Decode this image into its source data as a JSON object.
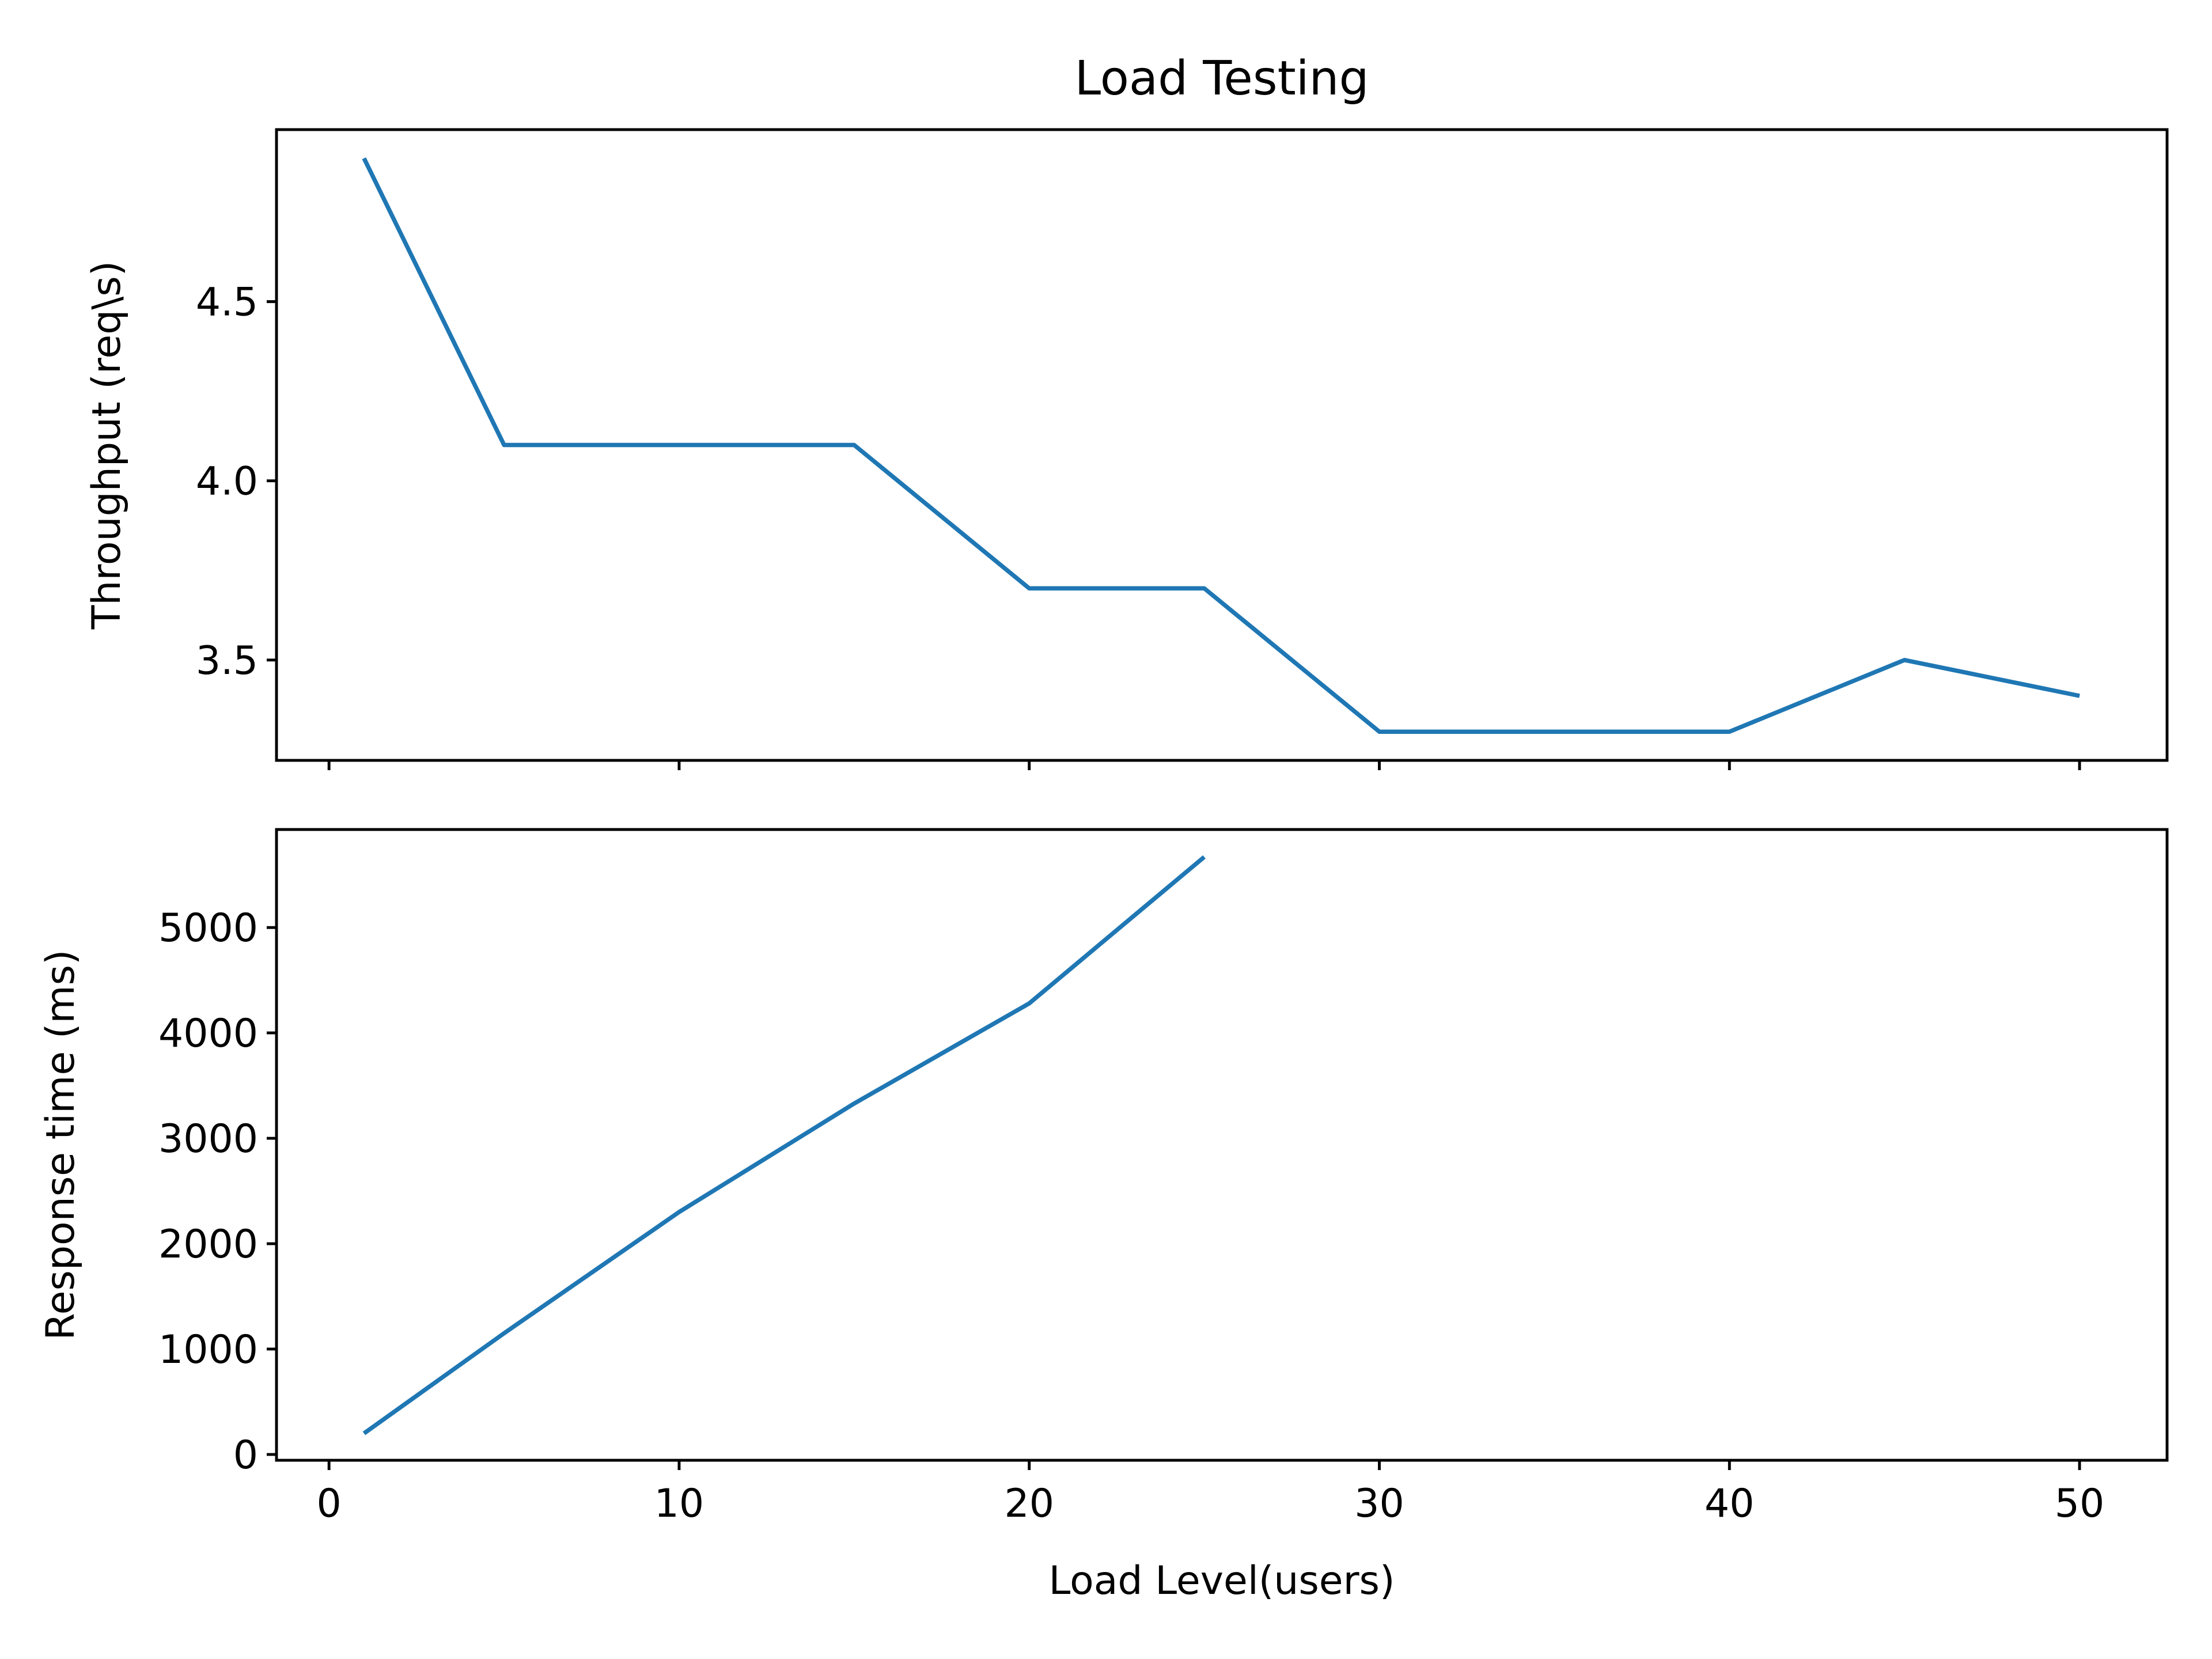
{
  "chart_data": [
    {
      "type": "line",
      "title": "Load Testing",
      "xlabel": "",
      "ylabel": "Throughput (req\\s)",
      "xlim": [
        -1.5,
        52.5
      ],
      "ylim": [
        3.22,
        4.98
      ],
      "xticks": [
        0,
        10,
        20,
        30,
        40,
        50
      ],
      "xtick_labels_visible": false,
      "yticks": [
        3.5,
        4.0,
        4.5
      ],
      "ytick_labels": [
        "3.5",
        "4.0",
        "4.5"
      ],
      "grid": false,
      "series": [
        {
          "color": "#1f77b4",
          "x": [
            1,
            5,
            10,
            15,
            20,
            25,
            30,
            35,
            40,
            45,
            50
          ],
          "y": [
            4.9,
            4.1,
            4.1,
            4.1,
            3.7,
            3.7,
            3.3,
            3.3,
            3.3,
            3.5,
            3.4
          ]
        }
      ]
    },
    {
      "type": "line",
      "title": "",
      "xlabel": "Load Level(users)",
      "ylabel": "Response time (ms)",
      "xlim": [
        -1.5,
        52.5
      ],
      "ylim": [
        -55,
        5930
      ],
      "xticks": [
        0,
        10,
        20,
        30,
        40,
        50
      ],
      "xtick_labels": [
        "0",
        "10",
        "20",
        "30",
        "40",
        "50"
      ],
      "yticks": [
        0,
        1000,
        2000,
        3000,
        4000,
        5000
      ],
      "ytick_labels": [
        "0",
        "1000",
        "2000",
        "3000",
        "4000",
        "5000"
      ],
      "grid": false,
      "series": [
        {
          "color": "#1f77b4",
          "x": [
            1,
            5,
            10,
            15,
            20,
            25
          ],
          "y": [
            200,
            1150,
            2300,
            3330,
            4280,
            5670
          ]
        }
      ]
    }
  ]
}
